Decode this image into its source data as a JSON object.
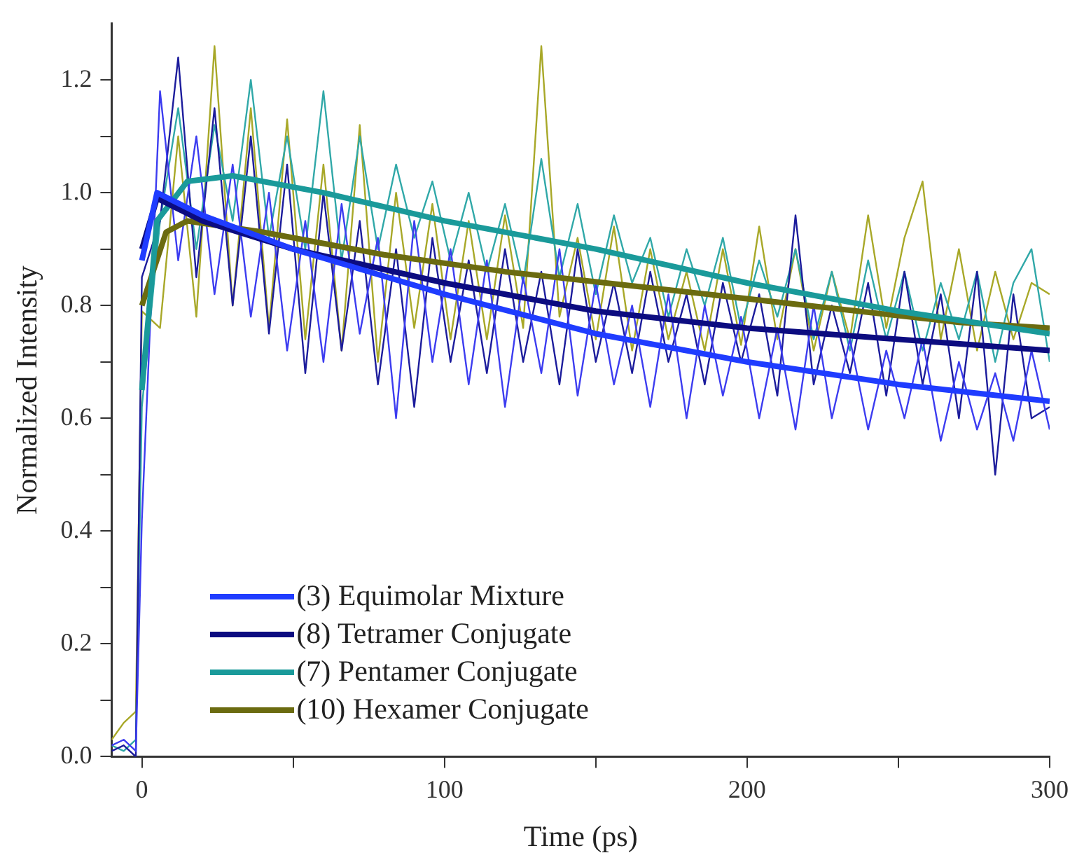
{
  "chart_data": {
    "type": "line",
    "xlabel": "Time (ps)",
    "ylabel": "Normalized Intensity",
    "xlim": [
      -10,
      300
    ],
    "ylim": [
      0,
      1.3
    ],
    "xticks": [
      0,
      {
        "value": 50,
        "label": null
      },
      100,
      {
        "value": 150,
        "label": null
      },
      200,
      {
        "value": 250,
        "label": null
      },
      300
    ],
    "yticks": [
      {
        "value": 0,
        "label": "0.0"
      },
      {
        "value": 0.1,
        "label": null
      },
      {
        "value": 0.2,
        "label": "0.2"
      },
      {
        "value": 0.3,
        "label": null
      },
      {
        "value": 0.4,
        "label": "0.4"
      },
      {
        "value": 0.5,
        "label": null
      },
      {
        "value": 0.6,
        "label": "0.6"
      },
      {
        "value": 0.7,
        "label": null
      },
      {
        "value": 0.8,
        "label": "0.8"
      },
      {
        "value": 0.9,
        "label": null
      },
      {
        "value": 1,
        "label": "1.0"
      },
      {
        "value": 1.1,
        "label": null
      },
      {
        "value": 1.2,
        "label": "1.2"
      }
    ],
    "grid": false,
    "legend": "bottom",
    "marker": "none",
    "line_style": "solid",
    "series": [
      {
        "color": "#3c3cf0",
        "x": [
          -10,
          -6,
          -2,
          0,
          6,
          12,
          18,
          24,
          30,
          36,
          42,
          48,
          54,
          60,
          66,
          72,
          78,
          84,
          90,
          96,
          102,
          108,
          114,
          120,
          126,
          132,
          138,
          144,
          150,
          156,
          162,
          168,
          174,
          180,
          186,
          192,
          198,
          204,
          210,
          216,
          222,
          228,
          234,
          240,
          246,
          252,
          258,
          264,
          270,
          276,
          282,
          288,
          294,
          300
        ],
        "values": [
          0.02,
          0.03,
          0.01,
          0.42,
          1.18,
          0.88,
          1.1,
          0.82,
          1.05,
          0.78,
          1.0,
          0.72,
          0.95,
          0.7,
          0.98,
          0.75,
          0.92,
          0.6,
          0.95,
          0.7,
          0.9,
          0.66,
          0.88,
          0.62,
          0.85,
          0.68,
          0.9,
          0.64,
          0.84,
          0.66,
          0.8,
          0.62,
          0.82,
          0.6,
          0.8,
          0.64,
          0.78,
          0.6,
          0.76,
          0.58,
          0.8,
          0.6,
          0.74,
          0.58,
          0.72,
          0.6,
          0.74,
          0.56,
          0.7,
          0.58,
          0.68,
          0.56,
          0.72,
          0.58
        ]
      },
      {
        "color": "#1c1c9c",
        "x": [
          -10,
          -6,
          -2,
          0,
          6,
          12,
          18,
          24,
          30,
          36,
          42,
          48,
          54,
          60,
          66,
          72,
          78,
          84,
          90,
          96,
          102,
          108,
          114,
          120,
          126,
          132,
          138,
          144,
          150,
          156,
          162,
          168,
          174,
          180,
          186,
          192,
          198,
          204,
          210,
          216,
          222,
          228,
          234,
          240,
          246,
          252,
          258,
          264,
          270,
          276,
          282,
          288,
          294,
          300
        ],
        "values": [
          0.01,
          0.02,
          0,
          0.85,
          0.95,
          1.24,
          0.85,
          1.15,
          0.8,
          1.1,
          0.75,
          1.05,
          0.68,
          1.0,
          0.72,
          0.95,
          0.66,
          0.9,
          0.62,
          0.92,
          0.7,
          0.88,
          0.68,
          0.9,
          0.7,
          0.86,
          0.66,
          0.9,
          0.7,
          0.84,
          0.68,
          0.86,
          0.7,
          0.82,
          0.66,
          0.84,
          0.7,
          0.82,
          0.64,
          0.96,
          0.66,
          0.8,
          0.68,
          0.84,
          0.64,
          0.86,
          0.66,
          0.82,
          0.6,
          0.86,
          0.5,
          0.82,
          0.6,
          0.62
        ]
      },
      {
        "color": "#30a8a8",
        "x": [
          -10,
          -6,
          -2,
          0,
          6,
          12,
          18,
          24,
          30,
          36,
          42,
          48,
          54,
          60,
          66,
          72,
          78,
          84,
          90,
          96,
          102,
          108,
          114,
          120,
          126,
          132,
          138,
          144,
          150,
          156,
          162,
          168,
          174,
          180,
          186,
          192,
          198,
          204,
          210,
          216,
          222,
          228,
          234,
          240,
          246,
          252,
          258,
          264,
          270,
          276,
          282,
          288,
          294,
          300
        ],
        "values": [
          0.02,
          0.01,
          0.03,
          0.62,
          0.95,
          1.15,
          0.9,
          1.12,
          0.95,
          1.2,
          0.92,
          1.1,
          0.9,
          1.18,
          0.88,
          1.1,
          0.9,
          1.05,
          0.92,
          1.02,
          0.88,
          1.0,
          0.86,
          0.98,
          0.84,
          1.06,
          0.85,
          0.98,
          0.82,
          0.96,
          0.84,
          0.92,
          0.78,
          0.9,
          0.8,
          0.92,
          0.76,
          0.88,
          0.78,
          0.9,
          0.74,
          0.86,
          0.72,
          0.88,
          0.74,
          0.86,
          0.72,
          0.84,
          0.74,
          0.86,
          0.7,
          0.84,
          0.9,
          0.7
        ]
      },
      {
        "color": "#a8a828",
        "x": [
          -10,
          -6,
          -2,
          0,
          6,
          12,
          18,
          24,
          30,
          36,
          42,
          48,
          54,
          60,
          66,
          72,
          78,
          84,
          90,
          96,
          102,
          108,
          114,
          120,
          126,
          132,
          138,
          144,
          150,
          156,
          162,
          168,
          174,
          180,
          186,
          192,
          198,
          204,
          210,
          216,
          222,
          228,
          234,
          240,
          246,
          252,
          258,
          264,
          270,
          276,
          282,
          288,
          294,
          300
        ],
        "values": [
          0.03,
          0.06,
          0.08,
          0.79,
          0.76,
          1.1,
          0.78,
          1.26,
          0.8,
          1.15,
          0.76,
          1.13,
          0.74,
          1.05,
          0.72,
          1.12,
          0.7,
          1.0,
          0.76,
          0.98,
          0.74,
          0.95,
          0.74,
          0.96,
          0.76,
          1.26,
          0.78,
          0.92,
          0.74,
          0.94,
          0.72,
          0.9,
          0.74,
          0.86,
          0.72,
          0.9,
          0.73,
          0.94,
          0.74,
          0.9,
          0.72,
          0.86,
          0.74,
          0.96,
          0.76,
          0.92,
          1.02,
          0.74,
          0.9,
          0.72,
          0.86,
          0.74,
          0.84,
          0.82
        ]
      },
      {
        "name": "(3) Equimolar Mixture",
        "color": "#1f3cff",
        "x": [
          0,
          5,
          20,
          50,
          100,
          150,
          200,
          250,
          300
        ],
        "values": [
          0.88,
          1.0,
          0.96,
          0.9,
          0.82,
          0.75,
          0.7,
          0.66,
          0.63
        ]
      },
      {
        "name": "(8) Tetramer Conjugate",
        "color": "#0c0c80",
        "x": [
          0,
          5,
          20,
          50,
          100,
          150,
          200,
          250,
          300
        ],
        "values": [
          0.9,
          0.99,
          0.95,
          0.9,
          0.84,
          0.79,
          0.76,
          0.74,
          0.72
        ]
      },
      {
        "name": "(7) Pentamer Conjugate",
        "color": "#1a9a9a",
        "x": [
          0,
          5,
          15,
          30,
          60,
          100,
          150,
          200,
          250,
          300
        ],
        "values": [
          0.65,
          0.95,
          1.02,
          1.03,
          1.0,
          0.95,
          0.9,
          0.84,
          0.79,
          0.75
        ]
      },
      {
        "name": "(10) Hexamer Conjugate",
        "color": "#6b6b10",
        "x": [
          0,
          8,
          15,
          40,
          80,
          120,
          170,
          220,
          270,
          300
        ],
        "values": [
          0.8,
          0.93,
          0.95,
          0.93,
          0.89,
          0.86,
          0.83,
          0.8,
          0.77,
          0.76
        ]
      }
    ]
  }
}
